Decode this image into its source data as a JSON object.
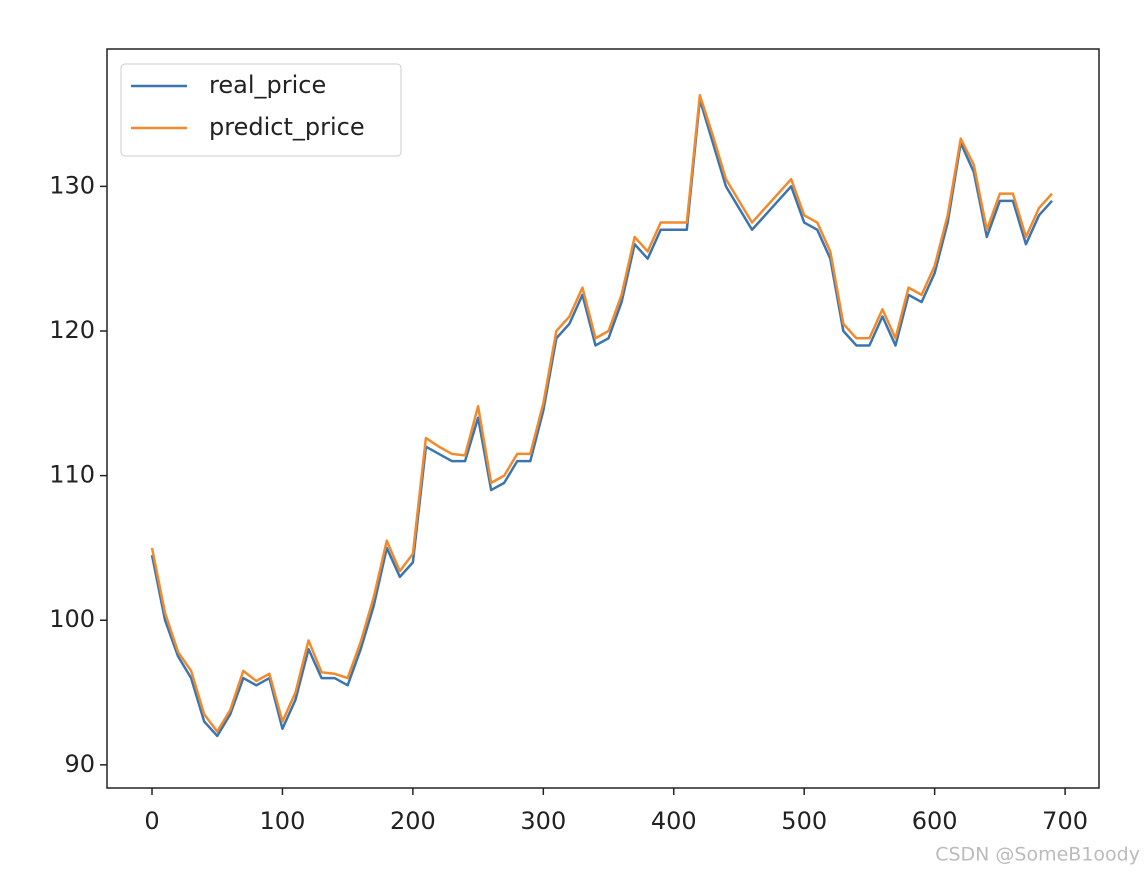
{
  "chart_data": {
    "type": "line",
    "x": [
      0,
      10,
      20,
      30,
      40,
      50,
      60,
      70,
      80,
      90,
      100,
      110,
      120,
      130,
      140,
      150,
      160,
      170,
      180,
      190,
      200,
      210,
      220,
      230,
      240,
      250,
      260,
      270,
      280,
      290,
      300,
      310,
      320,
      330,
      340,
      350,
      360,
      370,
      380,
      390,
      400,
      410,
      420,
      430,
      440,
      450,
      460,
      470,
      480,
      490,
      500,
      510,
      520,
      530,
      540,
      550,
      560,
      570,
      580,
      590,
      600,
      610,
      620,
      630,
      640,
      650,
      660,
      670,
      680,
      690
    ],
    "series": [
      {
        "name": "real_price",
        "color": "#3a75b0",
        "values": [
          104.5,
          100,
          97.5,
          96,
          93,
          92,
          93.5,
          96,
          95.5,
          96,
          92.5,
          94.5,
          98,
          96,
          96,
          95.5,
          98,
          101,
          105,
          103,
          104,
          112,
          111.5,
          111,
          111,
          114,
          109,
          109.5,
          111,
          111,
          114.5,
          119.5,
          120.5,
          122.5,
          119,
          119.5,
          122,
          126,
          125,
          127,
          127,
          127,
          136,
          133,
          130,
          128.5,
          127,
          128,
          129,
          130,
          127.5,
          127,
          125,
          120,
          119,
          119,
          121,
          119,
          122.5,
          122,
          124,
          127.5,
          133,
          131,
          126.5,
          129,
          129,
          126,
          128,
          129
        ]
      },
      {
        "name": "predict_price",
        "color": "#f28a2c",
        "values": [
          105,
          100.5,
          97.8,
          96.5,
          93.5,
          92.3,
          93.8,
          96.5,
          95.8,
          96.3,
          93,
          95,
          98.6,
          96.4,
          96.3,
          96,
          98.5,
          101.6,
          105.5,
          103.4,
          104.6,
          112.6,
          112,
          111.5,
          111.4,
          114.8,
          109.5,
          110,
          111.5,
          111.5,
          115,
          120,
          121,
          123,
          119.5,
          120,
          122.5,
          126.5,
          125.5,
          127.5,
          127.5,
          127.5,
          136.3,
          133.5,
          130.5,
          129,
          127.5,
          128.5,
          129.5,
          130.5,
          128,
          127.5,
          125.5,
          120.5,
          119.5,
          119.5,
          121.5,
          119.5,
          123,
          122.5,
          124.5,
          128,
          133.3,
          131.5,
          127,
          129.5,
          129.5,
          126.5,
          128.5,
          129.5
        ]
      }
    ],
    "xlim": [
      -34.5,
      726
    ],
    "ylim": [
      88.4,
      139.5
    ],
    "xticks": [
      0,
      100,
      200,
      300,
      400,
      500,
      600,
      700
    ],
    "yticks": [
      90,
      100,
      110,
      120,
      130
    ],
    "legend": "upper left",
    "grid": false
  },
  "watermark": "CSDN @SomeB1oody"
}
